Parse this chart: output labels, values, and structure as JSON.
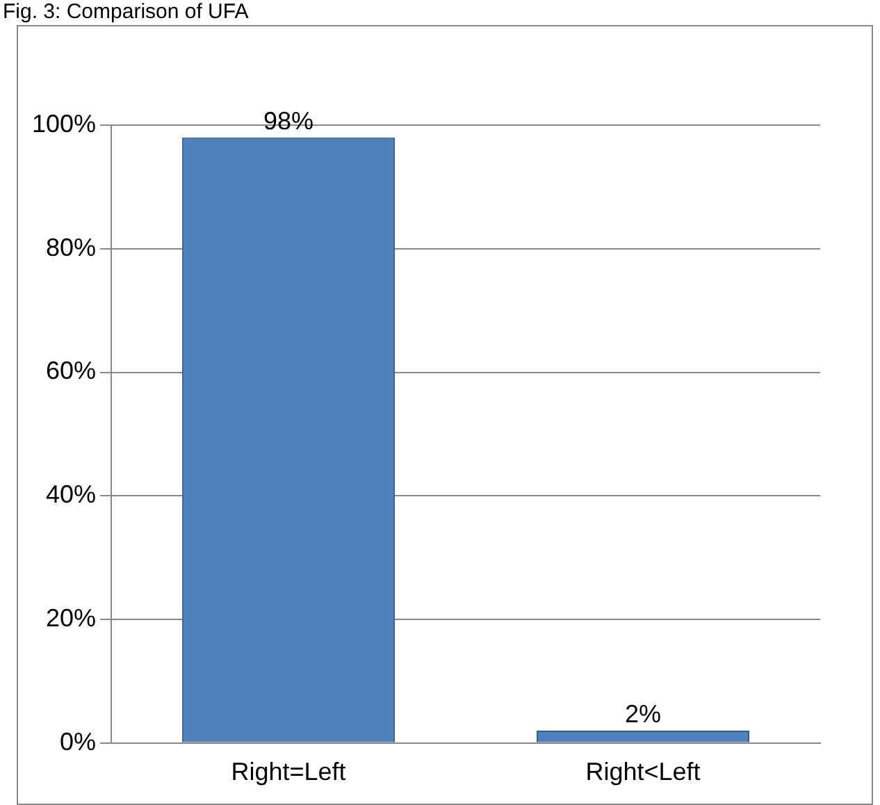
{
  "chart_data": {
    "type": "bar",
    "title": "Fig. 3: Comparison of UFA",
    "categories": [
      "Right=Left",
      "Right<Left"
    ],
    "values": [
      98,
      2
    ],
    "color": "#4f81bd",
    "value_labels": [
      "98%",
      "2%"
    ],
    "ylim": [
      0,
      100
    ],
    "yticks": [
      {
        "value": 0,
        "label": "0%"
      },
      {
        "value": 20,
        "label": "20%"
      },
      {
        "value": 40,
        "label": "40%"
      },
      {
        "value": 60,
        "label": "60%"
      },
      {
        "value": 80,
        "label": "80%"
      },
      {
        "value": 100,
        "label": "100%"
      }
    ],
    "grid": "y"
  }
}
